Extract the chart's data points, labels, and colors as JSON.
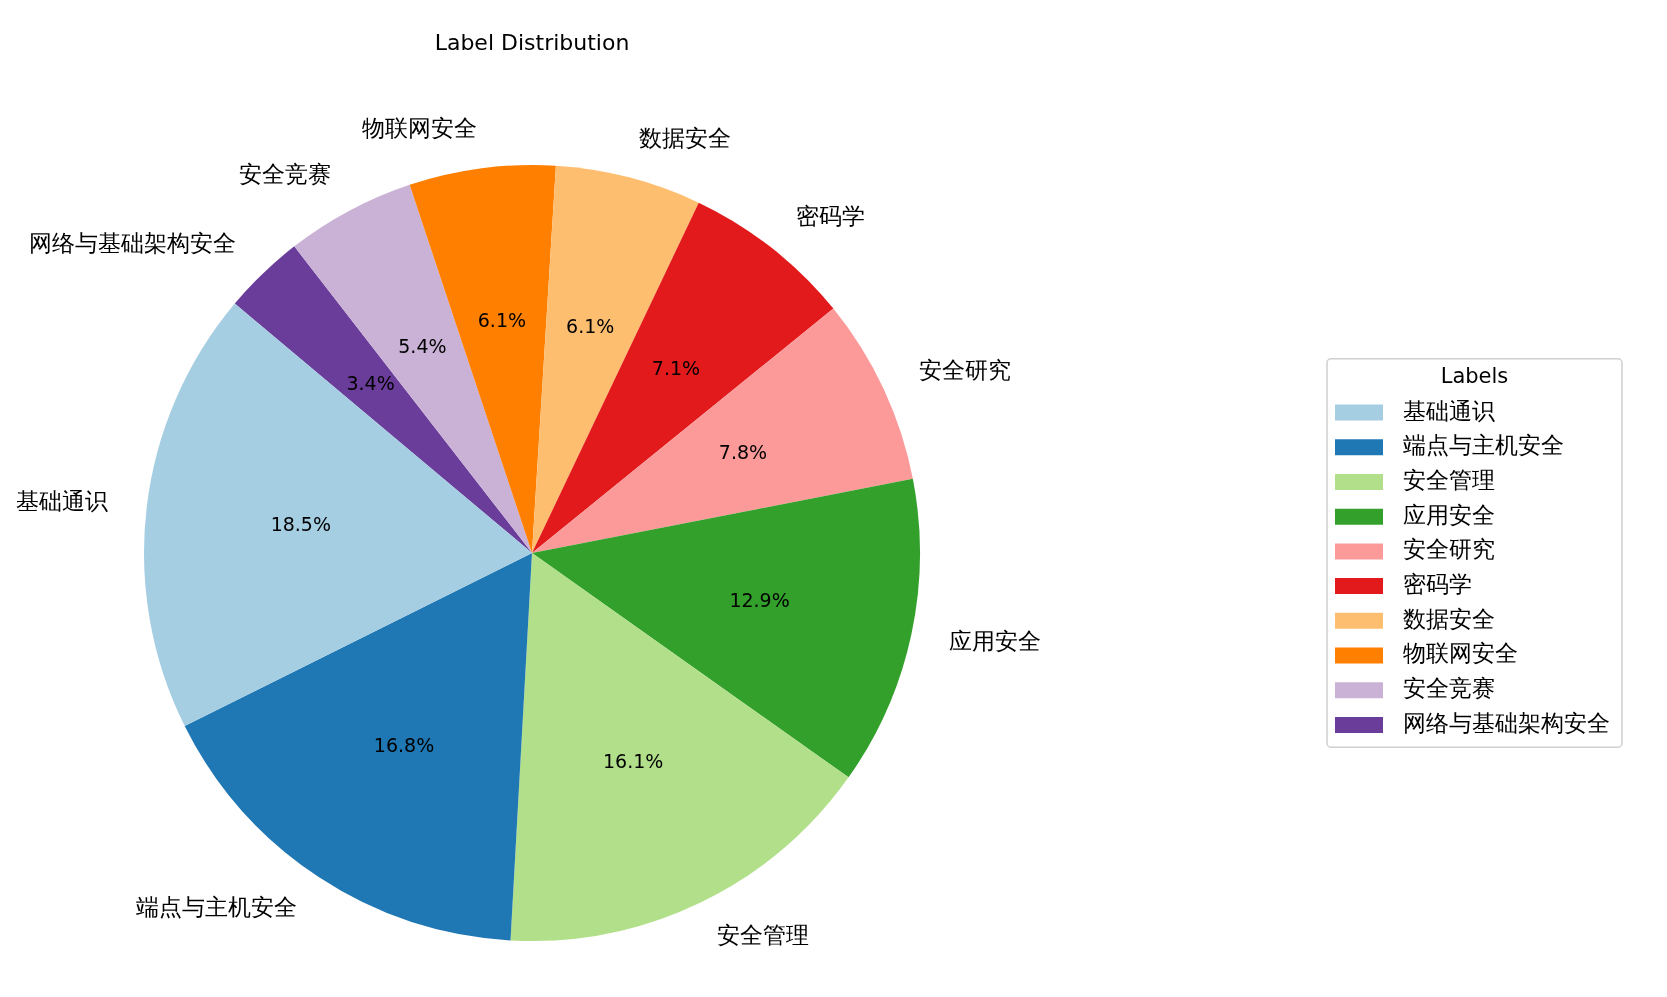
{
  "chart_data": {
    "type": "pie",
    "title": "Label Distribution",
    "categories": [
      "基础通识",
      "端点与主机安全",
      "安全管理",
      "应用安全",
      "安全研究",
      "密码学",
      "数据安全",
      "物联网安全",
      "安全竞赛",
      "网络与基础架构安全"
    ],
    "values": [
      18.5,
      16.8,
      16.1,
      12.9,
      7.8,
      7.1,
      6.1,
      6.1,
      5.4,
      3.4
    ],
    "colors": [
      "#a6cee3",
      "#1f78b4",
      "#b2df8a",
      "#33a02c",
      "#fb9a99",
      "#e31a1c",
      "#fdbf6f",
      "#ff7f00",
      "#cab2d6",
      "#6a3d9a"
    ],
    "value_labels": [
      "18.5%",
      "16.8%",
      "16.1%",
      "12.9%",
      "7.8%",
      "7.1%",
      "6.1%",
      "6.1%",
      "5.4%",
      "3.4%"
    ],
    "legend": "right",
    "legend_title": "Labels"
  }
}
